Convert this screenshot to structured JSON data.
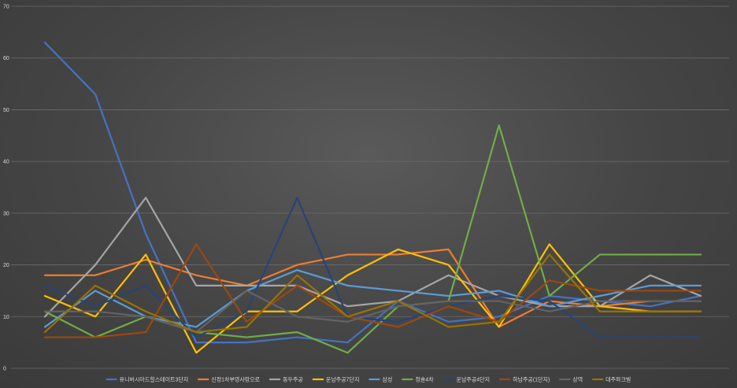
{
  "chart_data": {
    "type": "line",
    "title": "",
    "xlabel": "",
    "ylabel": "",
    "ylim": [
      0,
      70
    ],
    "yticks": [
      0,
      10,
      20,
      30,
      40,
      50,
      60,
      70
    ],
    "grid": true,
    "legend_position": "bottom",
    "x": [
      1,
      2,
      3,
      4,
      5,
      6,
      7,
      8,
      9,
      10,
      11,
      12,
      13,
      14
    ],
    "series": [
      {
        "name": "유니버시아드힐스테이트3단지",
        "color": "#4472c4",
        "values": [
          63,
          53,
          26,
          5,
          5,
          6,
          5,
          13,
          9,
          10,
          14,
          13,
          12,
          14
        ]
      },
      {
        "name": "신정1차부영사랑으로",
        "color": "#ed7d31",
        "values": [
          18,
          18,
          21,
          18,
          16,
          20,
          22,
          22,
          23,
          8,
          13,
          12,
          13,
          13
        ]
      },
      {
        "name": "동두주공",
        "color": "#a5a5a5",
        "values": [
          10,
          20,
          33,
          16,
          16,
          16,
          12,
          13,
          18,
          14,
          12,
          12,
          18,
          14
        ]
      },
      {
        "name": "운남주공7단지",
        "color": "#ffc000",
        "values": [
          14,
          10,
          22,
          3,
          11,
          11,
          18,
          23,
          20,
          8,
          24,
          12,
          11,
          11
        ]
      },
      {
        "name": "삼성",
        "color": "#5b9bd5",
        "values": [
          8,
          15,
          10,
          8,
          15,
          19,
          16,
          15,
          14,
          15,
          12,
          14,
          16,
          16
        ]
      },
      {
        "name": "청솔4차",
        "color": "#70ad47",
        "values": [
          11,
          6,
          10,
          7,
          6,
          7,
          3,
          12,
          13,
          47,
          14,
          22,
          22,
          22
        ]
      },
      {
        "name": "운남주공4단지",
        "color": "#264478",
        "values": [
          16,
          12,
          16,
          6,
          11,
          33,
          10,
          9,
          12,
          14,
          13,
          6,
          6,
          6
        ]
      },
      {
        "name": "하남주공(1단지)",
        "color": "#9e480e",
        "values": [
          6,
          6,
          7,
          24,
          9,
          16,
          10,
          8,
          12,
          9,
          17,
          15,
          15,
          15
        ]
      },
      {
        "name": "상역",
        "color": "#636363",
        "values": [
          11,
          11,
          10,
          7,
          15,
          10,
          9,
          12,
          13,
          13,
          11,
          13,
          13,
          13
        ]
      },
      {
        "name": "대주파크빌",
        "color": "#997300",
        "values": [
          7,
          16,
          11,
          7,
          8,
          18,
          10,
          13,
          8,
          9,
          22,
          11,
          11,
          11
        ]
      }
    ]
  }
}
